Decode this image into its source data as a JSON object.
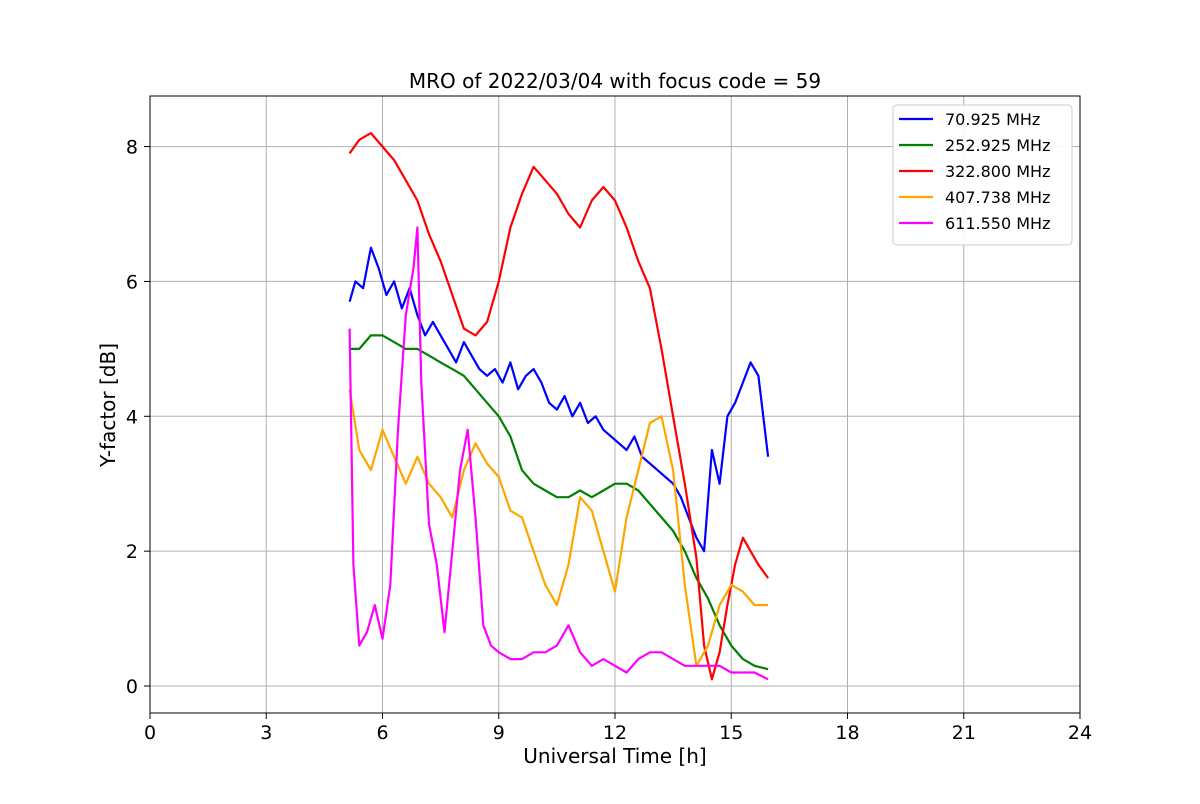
{
  "chart_data": {
    "type": "line",
    "title": "MRO of 2022/03/04 with focus code = 59",
    "xlabel": "Universal Time [h]",
    "ylabel": "Y-factor [dB]",
    "xlim": [
      0,
      24
    ],
    "ylim": [
      -0.4,
      8.75
    ],
    "xticks": [
      0,
      3,
      6,
      9,
      12,
      15,
      18,
      21,
      24
    ],
    "yticks": [
      0,
      2,
      4,
      6,
      8
    ],
    "grid": true,
    "legend_position": "top-right",
    "series": [
      {
        "name": " 70.925 MHz",
        "color": "#0000ff",
        "x": [
          5.15,
          5.3,
          5.5,
          5.7,
          5.9,
          6.1,
          6.3,
          6.5,
          6.7,
          6.9,
          7.1,
          7.3,
          7.5,
          7.7,
          7.9,
          8.1,
          8.3,
          8.5,
          8.7,
          8.9,
          9.1,
          9.3,
          9.5,
          9.7,
          9.9,
          10.1,
          10.3,
          10.5,
          10.7,
          10.9,
          11.1,
          11.3,
          11.5,
          11.7,
          11.9,
          12.1,
          12.3,
          12.5,
          12.7,
          12.9,
          13.1,
          13.3,
          13.5,
          13.7,
          13.9,
          14.1,
          14.3,
          14.5,
          14.7,
          14.9,
          15.1,
          15.3,
          15.5,
          15.7,
          15.95
        ],
        "y": [
          5.7,
          6.0,
          5.9,
          6.5,
          6.2,
          5.8,
          6.0,
          5.6,
          5.9,
          5.5,
          5.2,
          5.4,
          5.2,
          5.0,
          4.8,
          5.1,
          4.9,
          4.7,
          4.6,
          4.7,
          4.5,
          4.8,
          4.4,
          4.6,
          4.7,
          4.5,
          4.2,
          4.1,
          4.3,
          4.0,
          4.2,
          3.9,
          4.0,
          3.8,
          3.7,
          3.6,
          3.5,
          3.7,
          3.4,
          3.3,
          3.2,
          3.1,
          3.0,
          2.8,
          2.5,
          2.2,
          2.0,
          3.5,
          3.0,
          4.0,
          4.2,
          4.5,
          4.8,
          4.6,
          3.4
        ]
      },
      {
        "name": "252.925 MHz",
        "color": "#008000",
        "x": [
          5.15,
          5.4,
          5.7,
          6.0,
          6.3,
          6.6,
          6.9,
          7.2,
          7.5,
          7.8,
          8.1,
          8.4,
          8.7,
          9.0,
          9.3,
          9.6,
          9.9,
          10.2,
          10.5,
          10.8,
          11.1,
          11.4,
          11.7,
          12.0,
          12.3,
          12.6,
          12.9,
          13.2,
          13.5,
          13.8,
          14.1,
          14.4,
          14.7,
          15.0,
          15.3,
          15.6,
          15.95
        ],
        "y": [
          5.0,
          5.0,
          5.2,
          5.2,
          5.1,
          5.0,
          5.0,
          4.9,
          4.8,
          4.7,
          4.6,
          4.4,
          4.2,
          4.0,
          3.7,
          3.2,
          3.0,
          2.9,
          2.8,
          2.8,
          2.9,
          2.8,
          2.9,
          3.0,
          3.0,
          2.9,
          2.7,
          2.5,
          2.3,
          2.0,
          1.6,
          1.3,
          0.9,
          0.6,
          0.4,
          0.3,
          0.25
        ]
      },
      {
        "name": "322.800 MHz",
        "color": "#ff0000",
        "x": [
          5.15,
          5.4,
          5.7,
          6.0,
          6.3,
          6.6,
          6.9,
          7.2,
          7.5,
          7.8,
          8.1,
          8.4,
          8.7,
          9.0,
          9.3,
          9.6,
          9.9,
          10.2,
          10.5,
          10.8,
          11.1,
          11.4,
          11.7,
          12.0,
          12.3,
          12.6,
          12.9,
          13.2,
          13.5,
          13.8,
          14.1,
          14.3,
          14.5,
          14.7,
          14.9,
          15.1,
          15.3,
          15.5,
          15.7,
          15.95
        ],
        "y": [
          7.9,
          8.1,
          8.2,
          8.0,
          7.8,
          7.5,
          7.2,
          6.7,
          6.3,
          5.8,
          5.3,
          5.2,
          5.4,
          6.0,
          6.8,
          7.3,
          7.7,
          7.5,
          7.3,
          7.0,
          6.8,
          7.2,
          7.4,
          7.2,
          6.8,
          6.3,
          5.9,
          5.0,
          4.0,
          3.0,
          1.9,
          0.6,
          0.1,
          0.5,
          1.2,
          1.8,
          2.2,
          2.0,
          1.8,
          1.6
        ]
      },
      {
        "name": "407.738 MHz",
        "color": "#ffa500",
        "x": [
          5.15,
          5.4,
          5.7,
          6.0,
          6.3,
          6.6,
          6.9,
          7.2,
          7.5,
          7.8,
          8.1,
          8.4,
          8.7,
          9.0,
          9.3,
          9.6,
          9.9,
          10.2,
          10.5,
          10.8,
          11.1,
          11.4,
          11.7,
          12.0,
          12.3,
          12.6,
          12.9,
          13.2,
          13.5,
          13.8,
          14.1,
          14.4,
          14.7,
          15.0,
          15.3,
          15.6,
          15.95
        ],
        "y": [
          4.4,
          3.5,
          3.2,
          3.8,
          3.4,
          3.0,
          3.4,
          3.0,
          2.8,
          2.5,
          3.2,
          3.6,
          3.3,
          3.1,
          2.6,
          2.5,
          2.0,
          1.5,
          1.2,
          1.8,
          2.8,
          2.6,
          2.0,
          1.4,
          2.5,
          3.2,
          3.9,
          4.0,
          3.2,
          1.5,
          0.3,
          0.6,
          1.2,
          1.5,
          1.4,
          1.2,
          1.2
        ]
      },
      {
        "name": "611.550 MHz",
        "color": "#ff00ff",
        "x": [
          5.15,
          5.25,
          5.4,
          5.6,
          5.8,
          6.0,
          6.2,
          6.4,
          6.6,
          6.8,
          6.9,
          7.0,
          7.2,
          7.4,
          7.6,
          7.8,
          8.0,
          8.2,
          8.4,
          8.6,
          8.8,
          9.0,
          9.3,
          9.6,
          9.9,
          10.2,
          10.5,
          10.8,
          11.1,
          11.4,
          11.7,
          12.0,
          12.3,
          12.6,
          12.9,
          13.2,
          13.5,
          13.8,
          14.1,
          14.4,
          14.7,
          15.0,
          15.3,
          15.6,
          15.95
        ],
        "y": [
          5.3,
          1.8,
          0.6,
          0.8,
          1.2,
          0.7,
          1.5,
          3.8,
          5.5,
          6.2,
          6.8,
          4.5,
          2.4,
          1.8,
          0.8,
          2.0,
          3.2,
          3.8,
          2.5,
          0.9,
          0.6,
          0.5,
          0.4,
          0.4,
          0.5,
          0.5,
          0.6,
          0.9,
          0.5,
          0.3,
          0.4,
          0.3,
          0.2,
          0.4,
          0.5,
          0.5,
          0.4,
          0.3,
          0.3,
          0.3,
          0.3,
          0.2,
          0.2,
          0.2,
          0.1
        ]
      }
    ]
  }
}
